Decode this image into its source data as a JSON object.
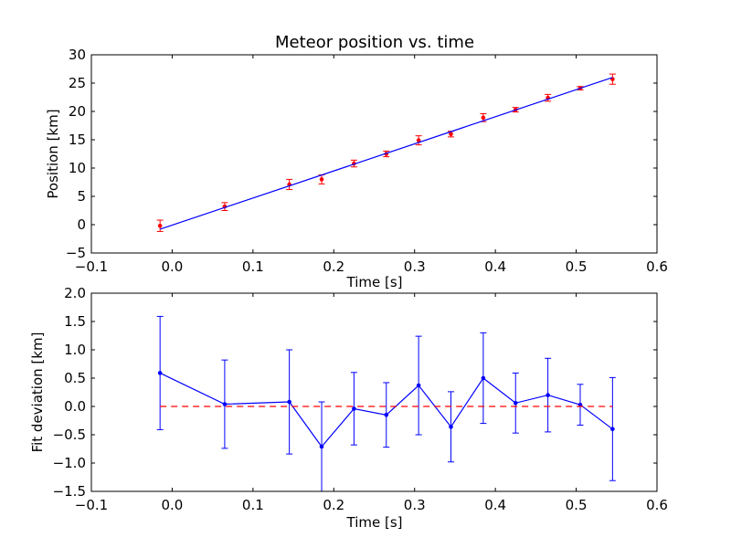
{
  "chart_data": [
    {
      "type": "scatter",
      "title": "Meteor position vs. time",
      "xlabel": "Time [s]",
      "ylabel": "Position [km]",
      "xlim": [
        -0.1,
        0.6
      ],
      "ylim": [
        -5,
        30
      ],
      "xticks": [
        -0.1,
        0.0,
        0.1,
        0.2,
        0.3,
        0.4,
        0.5,
        0.6
      ],
      "xtick_labels": [
        "−0.1",
        "0.0",
        "0.1",
        "0.2",
        "0.3",
        "0.4",
        "0.5",
        "0.6"
      ],
      "yticks": [
        -5,
        0,
        5,
        10,
        15,
        20,
        25,
        30
      ],
      "ytick_labels": [
        "−5",
        "0",
        "5",
        "10",
        "15",
        "20",
        "25",
        "30"
      ],
      "grid": false,
      "series": [
        {
          "kind": "errorbar-points",
          "color": "#ff0000",
          "x": [
            -0.015,
            0.065,
            0.145,
            0.185,
            0.225,
            0.265,
            0.305,
            0.345,
            0.385,
            0.425,
            0.465,
            0.505,
            0.545
          ],
          "y": [
            -0.2,
            3.2,
            7.1,
            8.0,
            10.8,
            12.5,
            14.9,
            16.0,
            18.9,
            20.3,
            22.4,
            24.1,
            25.7
          ],
          "yerr": [
            1.0,
            0.7,
            0.9,
            0.8,
            0.6,
            0.5,
            0.8,
            0.5,
            0.7,
            0.4,
            0.6,
            0.3,
            0.9
          ]
        },
        {
          "kind": "fit-line",
          "color": "#0000ff",
          "x": [
            -0.015,
            0.545
          ],
          "y": [
            -0.8,
            26.0
          ]
        }
      ]
    },
    {
      "type": "line",
      "title": "",
      "xlabel": "Time [s]",
      "ylabel": "Fit deviation [km]",
      "xlim": [
        -0.1,
        0.6
      ],
      "ylim": [
        -1.5,
        2.0
      ],
      "xticks": [
        -0.1,
        0.0,
        0.1,
        0.2,
        0.3,
        0.4,
        0.5,
        0.6
      ],
      "xtick_labels": [
        "−0.1",
        "0.0",
        "0.1",
        "0.2",
        "0.3",
        "0.4",
        "0.5",
        "0.6"
      ],
      "yticks": [
        -1.5,
        -1.0,
        -0.5,
        0.0,
        0.5,
        1.0,
        1.5,
        2.0
      ],
      "ytick_labels": [
        "−1.5",
        "−1.0",
        "−0.5",
        "0.0",
        "0.5",
        "1.0",
        "1.5",
        "2.0"
      ],
      "grid": false,
      "series": [
        {
          "kind": "errorbar-line",
          "color": "#0000ff",
          "x": [
            -0.015,
            0.065,
            0.145,
            0.185,
            0.225,
            0.265,
            0.305,
            0.345,
            0.385,
            0.425,
            0.465,
            0.505,
            0.545
          ],
          "y": [
            0.59,
            0.04,
            0.08,
            -0.71,
            -0.04,
            -0.15,
            0.37,
            -0.36,
            0.5,
            0.06,
            0.2,
            0.03,
            -0.4
          ],
          "yerr": [
            1.0,
            0.78,
            0.92,
            0.79,
            0.64,
            0.57,
            0.87,
            0.62,
            0.8,
            0.53,
            0.65,
            0.36,
            0.91
          ]
        },
        {
          "kind": "reference-line",
          "color": "#ff0000",
          "style": "dashed",
          "x": [
            -0.015,
            0.545
          ],
          "y": [
            0.0,
            0.0
          ]
        }
      ]
    }
  ]
}
